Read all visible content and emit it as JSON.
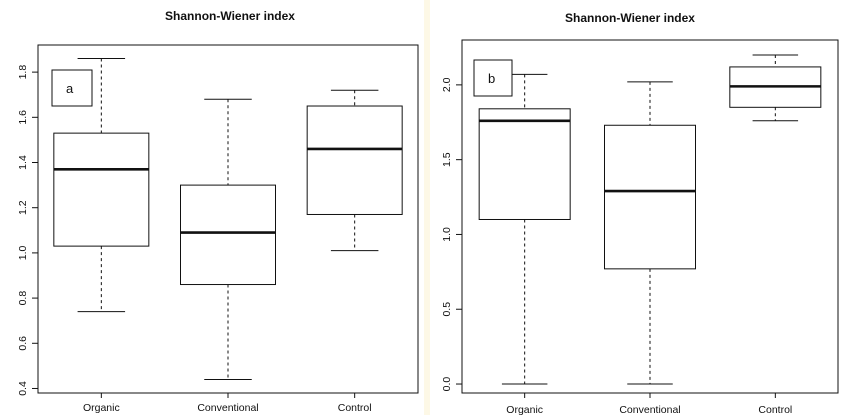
{
  "figure": {
    "background": "#fdf8e6"
  },
  "chart_data": [
    {
      "type": "boxplot",
      "panel_label": "a",
      "title": "Shannon-Wiener index",
      "xlabel": "",
      "ylabel": "",
      "ylim": [
        0.38,
        1.92
      ],
      "yticks": [
        0.4,
        0.6,
        0.8,
        1.0,
        1.2,
        1.4,
        1.6,
        1.8
      ],
      "ytick_labels": [
        "0.4",
        "0.6",
        "0.8",
        "1.0",
        "1.2",
        "1.4",
        "1.6",
        "1.8"
      ],
      "categories": [
        "Organic",
        "Conventional",
        "Control"
      ],
      "boxes": [
        {
          "name": "Organic",
          "min": 0.74,
          "q1": 1.03,
          "median": 1.37,
          "q3": 1.53,
          "max": 1.86
        },
        {
          "name": "Conventional",
          "min": 0.44,
          "q1": 0.86,
          "median": 1.09,
          "q3": 1.3,
          "max": 1.68
        },
        {
          "name": "Control",
          "min": 1.01,
          "q1": 1.17,
          "median": 1.46,
          "q3": 1.65,
          "max": 1.72
        }
      ]
    },
    {
      "type": "boxplot",
      "panel_label": "b",
      "title": "Shannon-Wiener index",
      "xlabel": "",
      "ylabel": "",
      "ylim": [
        -0.06,
        2.3
      ],
      "yticks": [
        0.0,
        0.5,
        1.0,
        1.5,
        2.0
      ],
      "ytick_labels": [
        "0.0",
        "0.5",
        "1.0",
        "1.5",
        "2.0"
      ],
      "categories": [
        "Organic",
        "Conventional",
        "Control"
      ],
      "boxes": [
        {
          "name": "Organic",
          "min": 0.0,
          "q1": 1.1,
          "median": 1.76,
          "q3": 1.84,
          "max": 2.07
        },
        {
          "name": "Conventional",
          "min": 0.0,
          "q1": 0.77,
          "median": 1.29,
          "q3": 1.73,
          "max": 2.02
        },
        {
          "name": "Control",
          "min": 1.76,
          "q1": 1.85,
          "median": 1.99,
          "q3": 2.12,
          "max": 2.2
        }
      ]
    }
  ]
}
